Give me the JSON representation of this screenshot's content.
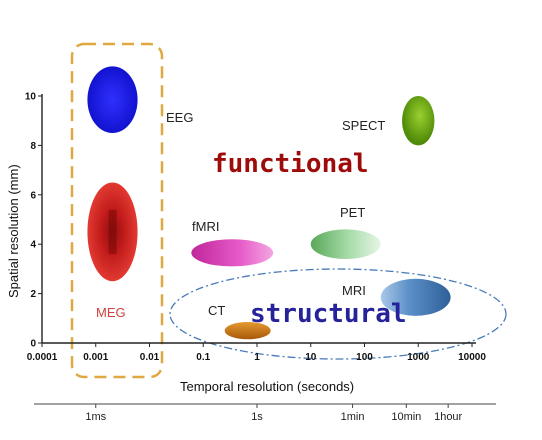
{
  "chart_data": {
    "type": "scatter",
    "title": "",
    "xlabel": "Temporal resolution (seconds)",
    "ylabel": "Spatial resolution (mm)",
    "x_scale": "log",
    "xlim": [
      0.0001,
      10000
    ],
    "ylim": [
      0,
      10
    ],
    "x_ticks": [
      {
        "value": 0.0001,
        "label": "0.0001"
      },
      {
        "value": 0.001,
        "label": "0.001"
      },
      {
        "value": 0.01,
        "label": "0.01"
      },
      {
        "value": 0.1,
        "label": "0.1"
      },
      {
        "value": 1,
        "label": "1"
      },
      {
        "value": 10,
        "label": "10"
      },
      {
        "value": 100,
        "label": "100"
      },
      {
        "value": 1000,
        "label": "1000"
      },
      {
        "value": 10000,
        "label": "10000"
      }
    ],
    "y_ticks": [
      {
        "value": 0,
        "label": "0"
      },
      {
        "value": 2,
        "label": "2"
      },
      {
        "value": 4,
        "label": "4"
      },
      {
        "value": 6,
        "label": "6"
      },
      {
        "value": 8,
        "label": "8"
      },
      {
        "value": 10,
        "label": "10"
      }
    ],
    "grid": false,
    "regions": [
      {
        "label": "EEG",
        "x_range": [
          0.0007,
          0.006
        ],
        "y_range": [
          8.5,
          11.2
        ],
        "color": "#1a1ae0"
      },
      {
        "label": "MEG",
        "x_range": [
          0.0007,
          0.006
        ],
        "y_range": [
          2.5,
          6.5
        ],
        "color": "#d01818"
      },
      {
        "label": "fMRI",
        "x_range": [
          0.06,
          2
        ],
        "y_range": [
          3.1,
          4.2
        ],
        "color": "#e040c0"
      },
      {
        "label": "CT",
        "x_range": [
          0.25,
          1.8
        ],
        "y_range": [
          0.15,
          0.85
        ],
        "color": "#c87010"
      },
      {
        "label": "PET",
        "x_range": [
          10,
          200
        ],
        "y_range": [
          3.4,
          4.6
        ],
        "color": "#8ac98a"
      },
      {
        "label": "SPECT",
        "x_range": [
          500,
          2000
        ],
        "y_range": [
          8,
          10
        ],
        "color": "#6aa610"
      },
      {
        "label": "MRI",
        "x_range": [
          200,
          4000
        ],
        "y_range": [
          1.1,
          2.6
        ],
        "color": "#3f7fb8"
      }
    ],
    "annotations": [
      {
        "text": "functional",
        "color": "#9e0b0b"
      },
      {
        "text": "structural",
        "color": "#26229a"
      }
    ],
    "time_scale": [
      "1ms",
      "1s",
      "1min",
      "10min",
      "1hour"
    ]
  }
}
